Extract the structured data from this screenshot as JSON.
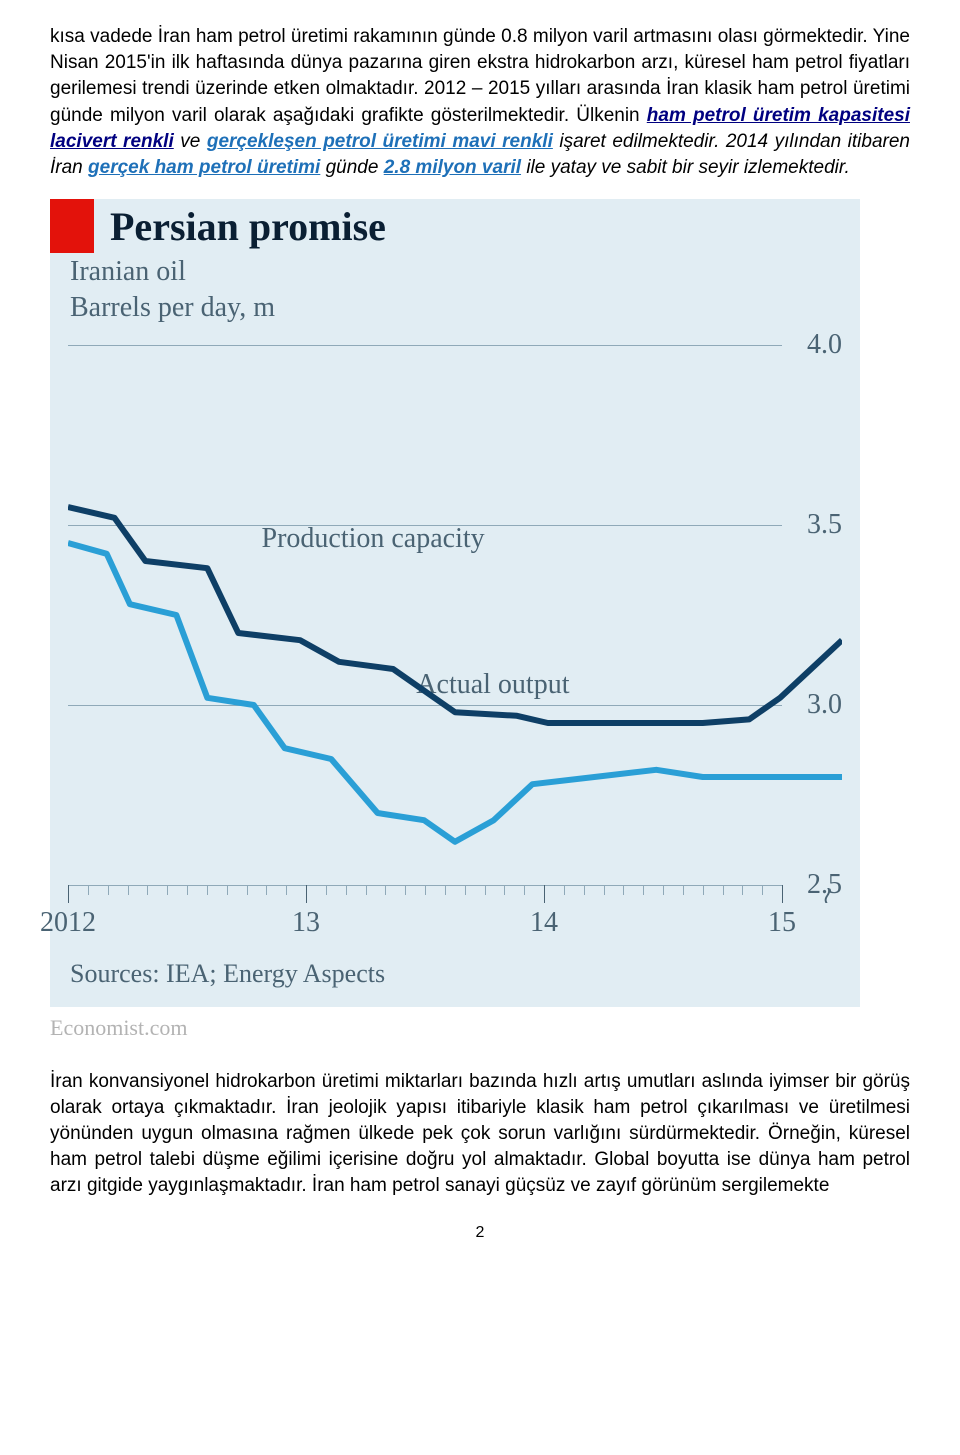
{
  "paragraphs": {
    "p1a": "kısa vadede İran ham petrol üretimi rakamının günde 0.8 milyon varil artmasını olası görmektedir. Yine Nisan 2015'in ilk haftasında dünya pazarına giren ekstra hidrokarbon arzı, küresel ham petrol fiyatları gerilemesi trendi üzerinde etken olmaktadır. 2012 – 2015 yılları arasında İran klasik ham petrol üretimi günde milyon varil olarak aşağıdaki grafikte gösterilmektedir. Ülkenin ",
    "p1_span1": "ham petrol üretim kapasitesi lacivert renkli",
    "p1b": " ve ",
    "p1_span2": "gerçekleşen petrol üretimi mavi renkli",
    "p1c": " işaret edilmektedir. 2014 yılından itibaren İran ",
    "p1_span3": "gerçek ham petrol üretimi",
    "p1d": " günde ",
    "p1_span4": "2.8 milyon varil",
    "p1e": " ile yatay ve sabit bir seyir izlemektedir.",
    "p2": "İran konvansiyonel hidrokarbon üretimi miktarları bazında hızlı artış umutları aslında iyimser bir görüş olarak ortaya çıkmaktadır. İran jeolojik yapısı itibariyle klasik ham petrol çıkarılması ve üretilmesi yönünden uygun olmasına rağmen ülkede pek çok sorun varlığını sürdürmektedir. Örneğin, küresel ham petrol talebi düşme eğilimi içerisine doğru yol almaktadır. Global boyutta ise dünya ham petrol arzı gitgide yaygınlaşmaktadır. İran ham petrol sanayi güçsüz ve zayıf görünüm sergilemekte"
  },
  "chart": {
    "title": "Persian promise",
    "subtitle1": "Iranian oil",
    "subtitle2": "Barrels per day, m",
    "sources": "Sources: IEA; Energy Aspects",
    "watermark": "Economist.com",
    "background": "#e1edf3",
    "accent": "#e3120b",
    "text_color": "#4a6373",
    "gridline_color": "#8fa9b8",
    "ylim": [
      2.5,
      4.0
    ],
    "ytick_step": 0.5,
    "yticks": [
      "4.0",
      "3.5",
      "3.0",
      "2.5"
    ],
    "xlabels": [
      "2012",
      "13",
      "14",
      "15"
    ],
    "minor_ticks_per_major": 12,
    "break_symbol": "≀",
    "series": [
      {
        "name": "Production capacity",
        "label": "Production capacity",
        "color": "#0e3f66",
        "line_width": 6,
        "label_pos": {
          "left_pct": 25,
          "top_pct": 33
        },
        "points": [
          [
            0.0,
            3.55
          ],
          [
            0.06,
            3.52
          ],
          [
            0.1,
            3.4
          ],
          [
            0.18,
            3.38
          ],
          [
            0.22,
            3.2
          ],
          [
            0.3,
            3.18
          ],
          [
            0.35,
            3.12
          ],
          [
            0.42,
            3.1
          ],
          [
            0.5,
            2.98
          ],
          [
            0.58,
            2.97
          ],
          [
            0.62,
            2.95
          ],
          [
            0.72,
            2.95
          ],
          [
            0.82,
            2.95
          ],
          [
            0.88,
            2.96
          ],
          [
            0.92,
            3.02
          ],
          [
            0.96,
            3.1
          ],
          [
            1.0,
            3.18
          ]
        ]
      },
      {
        "name": "Actual output",
        "label": "Actual output",
        "color": "#2a9fd6",
        "line_width": 6,
        "label_pos": {
          "left_pct": 45,
          "top_pct": 60
        },
        "points": [
          [
            0.0,
            3.45
          ],
          [
            0.05,
            3.42
          ],
          [
            0.08,
            3.28
          ],
          [
            0.14,
            3.25
          ],
          [
            0.18,
            3.02
          ],
          [
            0.24,
            3.0
          ],
          [
            0.28,
            2.88
          ],
          [
            0.34,
            2.85
          ],
          [
            0.4,
            2.7
          ],
          [
            0.46,
            2.68
          ],
          [
            0.5,
            2.62
          ],
          [
            0.55,
            2.68
          ],
          [
            0.6,
            2.78
          ],
          [
            0.68,
            2.8
          ],
          [
            0.76,
            2.82
          ],
          [
            0.82,
            2.8
          ],
          [
            0.88,
            2.8
          ],
          [
            0.94,
            2.8
          ],
          [
            1.0,
            2.8
          ]
        ]
      }
    ]
  },
  "page_number": "2"
}
